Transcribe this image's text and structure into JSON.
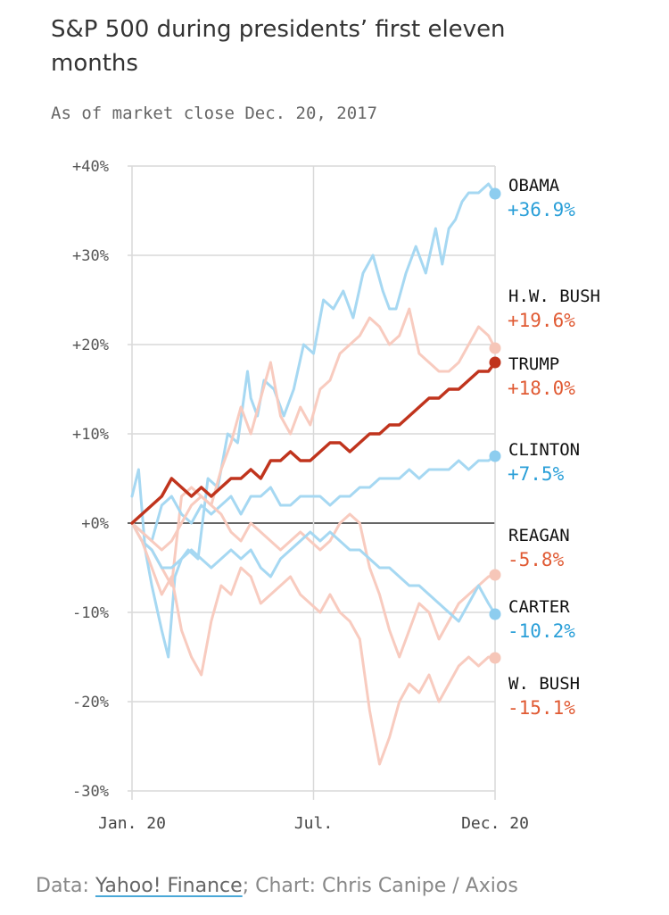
{
  "title": "S&P 500 during presidents’ first eleven months",
  "subtitle": "As of market close Dec. 20, 2017",
  "footer": {
    "prefix": "Data:",
    "source": "Yahoo! Finance",
    "sep": ";",
    "credit": "Chart: Chris Canipe / Axios"
  },
  "colors": {
    "blue_line": "#a6d8f2",
    "blue_dot": "#8dcdef",
    "blue_text": "#2a9fd8",
    "pink_line": "#f8cbbf",
    "pink_dot": "#f6c6b8",
    "red_text": "#e05a33",
    "trump": "#c0341d",
    "axis": "#666666",
    "grid": "#d9d9d9"
  },
  "chart_data": {
    "type": "line",
    "ylabel": "",
    "xlabel": "",
    "ylim": [
      -30,
      40
    ],
    "yticks": [
      40,
      30,
      20,
      10,
      0,
      -10,
      -20,
      -30
    ],
    "ytick_labels": [
      "+40%",
      "+30%",
      "+20%",
      "+10%",
      "+0%",
      "-10%",
      "-20%",
      "-30%"
    ],
    "xlim": [
      0,
      11
    ],
    "xticks": [
      0,
      5.5,
      11
    ],
    "xtick_labels": [
      "Jan. 20",
      "Jul.",
      "Dec. 20"
    ],
    "series": [
      {
        "name": "OBAMA",
        "label": "+36.9%",
        "group": "blue",
        "x": [
          0,
          0.2,
          0.4,
          0.6,
          0.9,
          1.1,
          1.3,
          1.5,
          1.7,
          2.0,
          2.3,
          2.6,
          2.9,
          3.2,
          3.5,
          3.6,
          3.8,
          4.0,
          4.3,
          4.6,
          4.9,
          5.2,
          5.5,
          5.8,
          6.1,
          6.4,
          6.7,
          7.0,
          7.3,
          7.6,
          7.8,
          8.0,
          8.3,
          8.6,
          8.9,
          9.2,
          9.4,
          9.6,
          9.8,
          10.0,
          10.2,
          10.5,
          10.8,
          11.0
        ],
        "y": [
          3,
          6,
          -3,
          -7,
          -12,
          -15,
          -6,
          -4,
          -3,
          -4,
          5,
          4,
          10,
          9,
          17,
          14,
          12,
          16,
          15,
          12,
          15,
          20,
          19,
          25,
          24,
          26,
          23,
          28,
          30,
          26,
          24,
          24,
          28,
          31,
          28,
          33,
          29,
          33,
          34,
          36,
          37,
          37,
          38,
          36.9
        ]
      },
      {
        "name": "H.W. BUSH",
        "label": "+19.6%",
        "group": "pink",
        "x": [
          0,
          0.3,
          0.6,
          0.9,
          1.2,
          1.5,
          1.8,
          2.1,
          2.4,
          2.7,
          3.0,
          3.3,
          3.6,
          3.9,
          4.2,
          4.5,
          4.8,
          5.1,
          5.4,
          5.7,
          6.0,
          6.3,
          6.6,
          6.9,
          7.2,
          7.5,
          7.8,
          8.1,
          8.4,
          8.7,
          9.0,
          9.3,
          9.6,
          9.9,
          10.2,
          10.5,
          10.8,
          11.0
        ],
        "y": [
          0,
          -2,
          -3,
          -5,
          -7,
          3,
          4,
          3,
          2,
          6,
          9,
          13,
          10,
          14,
          18,
          12,
          10,
          13,
          11,
          15,
          16,
          19,
          20,
          21,
          23,
          22,
          20,
          21,
          24,
          19,
          18,
          17,
          17,
          18,
          20,
          22,
          21,
          19.6
        ]
      },
      {
        "name": "TRUMP",
        "label": "+18.0%",
        "group": "trump",
        "x": [
          0,
          0.3,
          0.6,
          0.9,
          1.2,
          1.5,
          1.8,
          2.1,
          2.4,
          2.7,
          3.0,
          3.3,
          3.6,
          3.9,
          4.2,
          4.5,
          4.8,
          5.1,
          5.4,
          5.7,
          6.0,
          6.3,
          6.6,
          6.9,
          7.2,
          7.5,
          7.8,
          8.1,
          8.4,
          8.7,
          9.0,
          9.3,
          9.6,
          9.9,
          10.2,
          10.5,
          10.8,
          11.0
        ],
        "y": [
          0,
          1,
          2,
          3,
          5,
          4,
          3,
          4,
          3,
          4,
          5,
          5,
          6,
          5,
          7,
          7,
          8,
          7,
          7,
          8,
          9,
          9,
          8,
          9,
          10,
          10,
          11,
          11,
          12,
          13,
          14,
          14,
          15,
          15,
          16,
          17,
          17,
          18.0
        ]
      },
      {
        "name": "CLINTON",
        "label": "+7.5%",
        "group": "blue",
        "x": [
          0,
          0.3,
          0.6,
          0.9,
          1.2,
          1.5,
          1.8,
          2.1,
          2.4,
          2.7,
          3.0,
          3.3,
          3.6,
          3.9,
          4.2,
          4.5,
          4.8,
          5.1,
          5.4,
          5.7,
          6.0,
          6.3,
          6.6,
          6.9,
          7.2,
          7.5,
          7.8,
          8.1,
          8.4,
          8.7,
          9.0,
          9.3,
          9.6,
          9.9,
          10.2,
          10.5,
          10.8,
          11.0
        ],
        "y": [
          0,
          -1,
          -2,
          2,
          3,
          1,
          0,
          2,
          1,
          2,
          3,
          1,
          3,
          3,
          4,
          2,
          2,
          3,
          3,
          3,
          2,
          3,
          3,
          4,
          4,
          5,
          5,
          5,
          6,
          5,
          6,
          6,
          6,
          7,
          6,
          7,
          7,
          7.5
        ]
      },
      {
        "name": "REAGAN",
        "label": "-5.8%",
        "group": "pink",
        "x": [
          0,
          0.3,
          0.6,
          0.9,
          1.2,
          1.5,
          1.8,
          2.1,
          2.4,
          2.7,
          3.0,
          3.3,
          3.6,
          3.9,
          4.2,
          4.5,
          4.8,
          5.1,
          5.4,
          5.7,
          6.0,
          6.3,
          6.6,
          6.9,
          7.2,
          7.5,
          7.8,
          8.1,
          8.4,
          8.7,
          9.0,
          9.3,
          9.6,
          9.9,
          10.2,
          10.5,
          10.8,
          11.0
        ],
        "y": [
          0,
          -1,
          -2,
          -3,
          -2,
          0,
          2,
          3,
          2,
          1,
          -1,
          -2,
          0,
          -1,
          -2,
          -3,
          -2,
          -1,
          -2,
          -3,
          -2,
          0,
          1,
          0,
          -5,
          -8,
          -12,
          -15,
          -12,
          -9,
          -10,
          -13,
          -11,
          -9,
          -8,
          -7,
          -6,
          -5.8
        ]
      },
      {
        "name": "CARTER",
        "label": "-10.2%",
        "group": "blue",
        "x": [
          0,
          0.3,
          0.6,
          0.9,
          1.2,
          1.5,
          1.8,
          2.1,
          2.4,
          2.7,
          3.0,
          3.3,
          3.6,
          3.9,
          4.2,
          4.5,
          4.8,
          5.1,
          5.4,
          5.7,
          6.0,
          6.3,
          6.6,
          6.9,
          7.2,
          7.5,
          7.8,
          8.1,
          8.4,
          8.7,
          9.0,
          9.3,
          9.6,
          9.9,
          10.2,
          10.5,
          10.8,
          11.0
        ],
        "y": [
          0,
          -2,
          -3,
          -5,
          -5,
          -4,
          -3,
          -4,
          -5,
          -4,
          -3,
          -4,
          -3,
          -5,
          -6,
          -4,
          -3,
          -2,
          -1,
          -2,
          -1,
          -2,
          -3,
          -3,
          -4,
          -5,
          -5,
          -6,
          -7,
          -7,
          -8,
          -9,
          -10,
          -11,
          -9,
          -7,
          -9,
          -10.2
        ]
      },
      {
        "name": "W. BUSH",
        "label": "-15.1%",
        "group": "pink",
        "x": [
          0,
          0.3,
          0.6,
          0.9,
          1.2,
          1.5,
          1.8,
          2.1,
          2.4,
          2.7,
          3.0,
          3.3,
          3.6,
          3.9,
          4.2,
          4.5,
          4.8,
          5.1,
          5.4,
          5.7,
          6.0,
          6.3,
          6.6,
          6.9,
          7.2,
          7.5,
          7.8,
          8.1,
          8.4,
          8.7,
          9.0,
          9.3,
          9.6,
          9.9,
          10.2,
          10.5,
          10.8,
          11.0
        ],
        "y": [
          0,
          -2,
          -5,
          -8,
          -6,
          -12,
          -15,
          -17,
          -11,
          -7,
          -8,
          -5,
          -6,
          -9,
          -8,
          -7,
          -6,
          -8,
          -9,
          -10,
          -8,
          -10,
          -11,
          -13,
          -21,
          -27,
          -24,
          -20,
          -18,
          -19,
          -17,
          -20,
          -18,
          -16,
          -15,
          -16,
          -15,
          -15.1
        ]
      }
    ]
  }
}
